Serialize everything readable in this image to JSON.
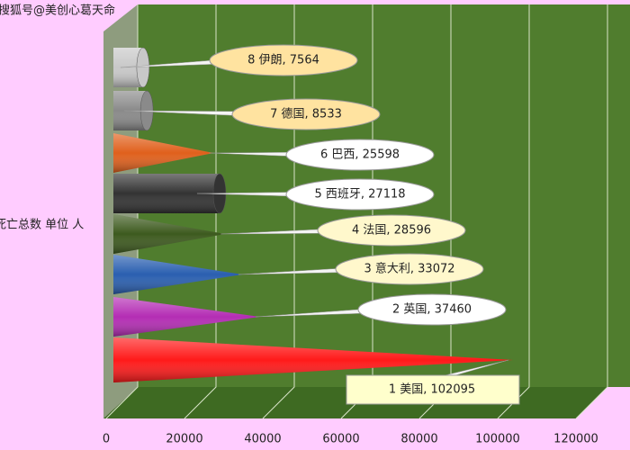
{
  "watermark": "搜狐号@美创心葛天命",
  "chart_data": {
    "type": "bar3d",
    "orientation": "horizontal",
    "y_label": "死亡总数 单位 人",
    "values": [
      102095,
      37460,
      33072,
      28596,
      27118,
      25598,
      8533,
      7564
    ],
    "value_labels": [
      "1 美国, 102095",
      "2 英国, 37460",
      "3 意大利, 33072",
      "4 法国, 28596",
      "5 西班牙, 27118",
      "6 巴西, 25598",
      "7 德国, 8533",
      "8 伊朗, 7564"
    ],
    "colors": [
      "#ff1a1a",
      "#b42db4",
      "#2a5fb0",
      "#3d5a1e",
      "#333333",
      "#e0601c",
      "#8a8a8a",
      "#c8c8c8"
    ],
    "shapes": [
      "cone",
      "cone",
      "cone",
      "cone",
      "cylinder",
      "cone",
      "cylinder",
      "cylinder"
    ],
    "xlim": [
      0,
      120000
    ],
    "xticks": [
      0,
      20000,
      40000,
      60000,
      80000,
      100000,
      120000
    ],
    "grid": true
  }
}
